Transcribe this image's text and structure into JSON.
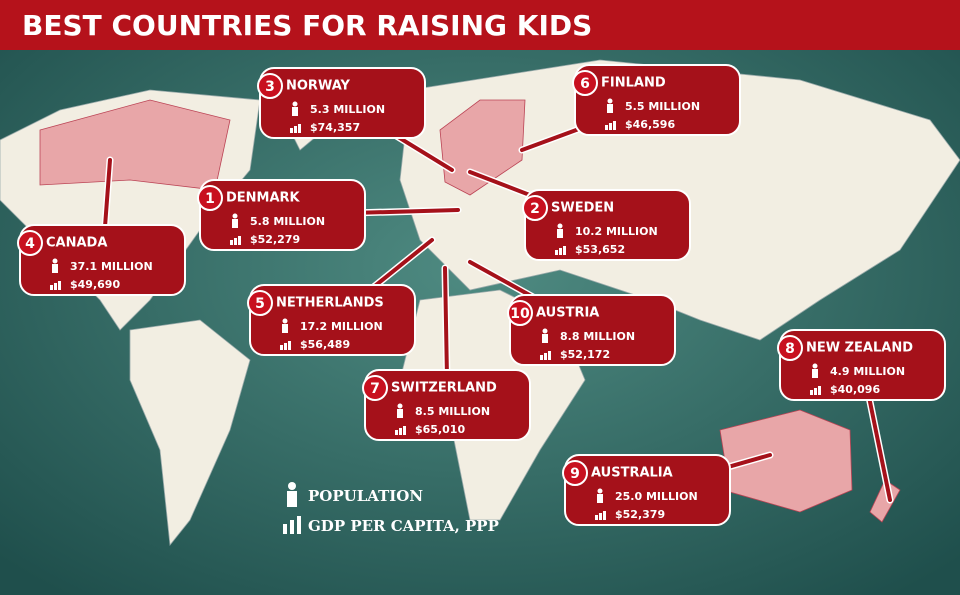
{
  "title": "BEST COUNTRIES FOR RAISING KIDS",
  "callouts": [
    {
      "rank": 1,
      "country": "DENMARK",
      "population": "5.8 MILLION",
      "gdp": "$52,279"
    },
    {
      "rank": 2,
      "country": "SWEDEN",
      "population": "10.2 MILLION",
      "gdp": "$53,652"
    },
    {
      "rank": 3,
      "country": "NORWAY",
      "population": "5.3 MILLION",
      "gdp": "$74,357"
    },
    {
      "rank": 4,
      "country": "CANADA",
      "population": "37.1 MILLION",
      "gdp": "$49,690"
    },
    {
      "rank": 5,
      "country": "NETHERLANDS",
      "population": "17.2 MILLION",
      "gdp": "$56,489"
    },
    {
      "rank": 6,
      "country": "FINLAND",
      "population": "5.5 MILLION",
      "gdp": "$46,596"
    },
    {
      "rank": 7,
      "country": "SWITZERLAND",
      "population": "8.5 MILLION",
      "gdp": "$65,010"
    },
    {
      "rank": 8,
      "country": "NEW ZEALAND",
      "population": "4.9 MILLION",
      "gdp": "$40,096"
    },
    {
      "rank": 9,
      "country": "AUSTRALIA",
      "population": "25.0 MILLION",
      "gdp": "$52,379"
    },
    {
      "rank": 10,
      "country": "AUSTRIA",
      "population": "8.8 MILLION",
      "gdp": "$52,172"
    }
  ],
  "legend": {
    "population": "POPULATION",
    "gdp": "GDP PER CAPITA, PPP"
  }
}
